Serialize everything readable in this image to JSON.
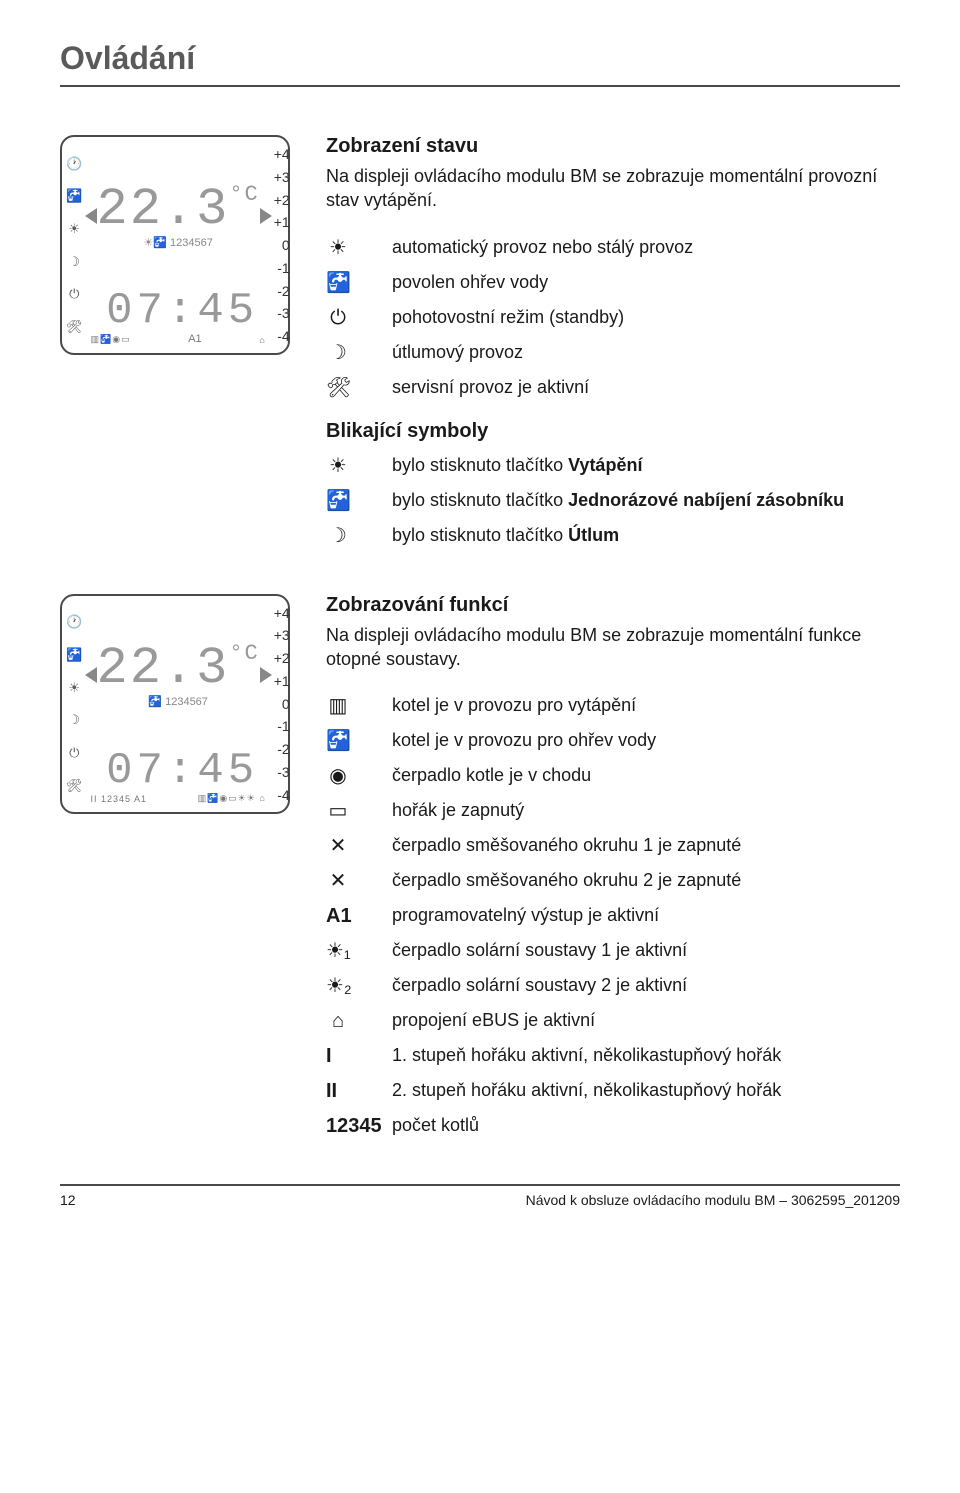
{
  "page_title": "Ovládání",
  "footer": {
    "page": "12",
    "doc": "Návod k obsluze ovládacího modulu BM – 3062595_201209"
  },
  "display": {
    "scale": [
      "+4",
      "+3",
      "+2",
      "+1",
      "0",
      "-1",
      "-2",
      "-3",
      "-4"
    ],
    "temp": "22.3",
    "temp_unit": "°C",
    "prog": "1234567",
    "time": "07:45",
    "a1": "A1",
    "bottom_row": "II 12345   A1",
    "side_icons": [
      "🕐",
      "🚰",
      "☀",
      "☽",
      "⏻",
      "🛠"
    ],
    "colors": {
      "border": "#4a4a4a",
      "digits": "#999999",
      "scale_text": "#333333"
    }
  },
  "sect1": {
    "title": "Zobrazení stavu",
    "lead": "Na displeji ovládacího modulu BM se zobrazuje momentální provozní stav vytápění.",
    "rows": [
      {
        "ic": "sun",
        "t": "automatický provoz nebo stálý provoz"
      },
      {
        "ic": "tap",
        "t": "povolen ohřev vody"
      },
      {
        "ic": "pwr",
        "t": "pohotovostní režim (standby)"
      },
      {
        "ic": "moon",
        "t": "útlumový provoz"
      },
      {
        "ic": "wrench",
        "t": "servisní provoz je aktivní"
      }
    ],
    "sub_title": "Blikající symboly",
    "sub_rows": [
      {
        "ic": "sun",
        "t": "bylo stisknuto tlačítko Vytápění"
      },
      {
        "ic": "tap",
        "t": "bylo stisknuto tlačítko Jednorázové nabíjení zásobníku"
      },
      {
        "ic": "moon",
        "t": "bylo stisknuto tlačítko Útlum"
      }
    ]
  },
  "sect2": {
    "title": "Zobrazování funkcí",
    "lead": "Na displeji ovládacího modulu BM se zobrazuje momentální funkce otopné soustavy.",
    "rows": [
      {
        "ic": "rad",
        "t": "kotel je v provozu pro vytápění"
      },
      {
        "ic": "tap",
        "t": "kotel je v provozu pro ohřev vody"
      },
      {
        "ic": "pump",
        "t": "čerpadlo kotle je v chodu"
      },
      {
        "ic": "flame",
        "t": "hořák je zapnutý"
      },
      {
        "ic": "mix1",
        "t": "čerpadlo směšovaného okruhu 1 je zapnuté"
      },
      {
        "ic": "mix2",
        "t": "čerpadlo směšovaného okruhu 2 je zapnuté"
      },
      {
        "lbl": "A1",
        "t": "programovatelný výstup je aktivní"
      },
      {
        "ic": "sol1",
        "t": "čerpadlo solární soustavy 1 je aktivní"
      },
      {
        "ic": "sol2",
        "t": "čerpadlo solární soustavy 2 je aktivní"
      },
      {
        "ic": "bus",
        "t": "propojení eBUS je aktivní"
      },
      {
        "lbl": "I",
        "t": "1. stupeň hořáku aktivní, několikastupňový hořák"
      },
      {
        "lbl": "II",
        "t": "2. stupeň hořáku aktivní, několikastupňový hořák"
      },
      {
        "lbl": "12345",
        "t": "počet kotlů"
      }
    ]
  }
}
